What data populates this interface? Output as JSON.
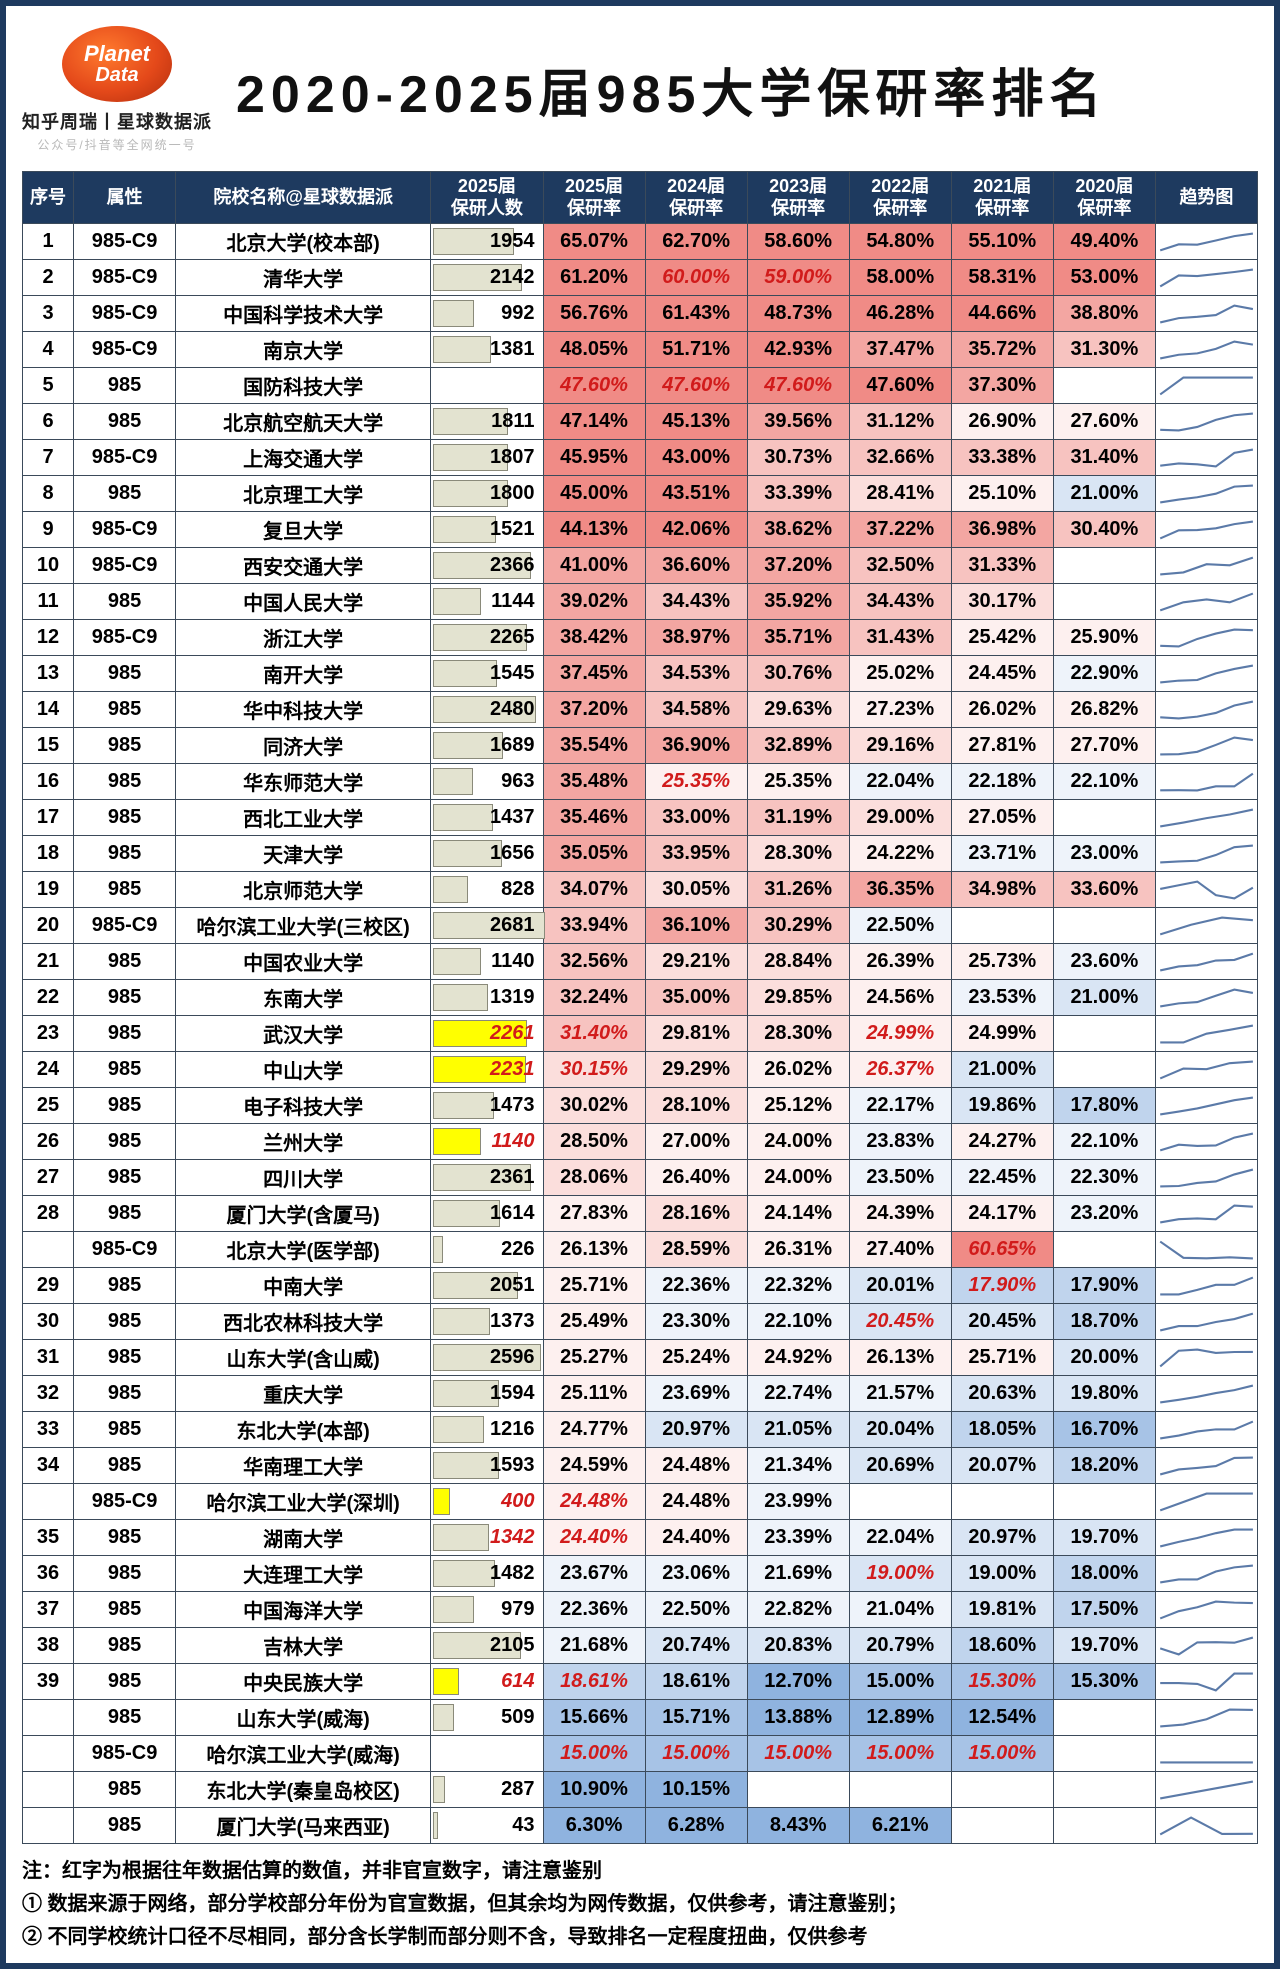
{
  "logo": {
    "line1": "Planet",
    "line2": "Data",
    "sub1": "知乎周瑞丨星球数据派",
    "sub2": "公众号/抖音等全网统一号"
  },
  "title": "2020-2025届985大学保研率排名",
  "columns": [
    "序号",
    "属性",
    "院校名称@星球数据派",
    "2025届\n保研人数",
    "2025届\n保研率",
    "2024届\n保研率",
    "2023届\n保研率",
    "2022届\n保研率",
    "2021届\n保研率",
    "2020届\n保研率",
    "趋势图"
  ],
  "max_count": 2681,
  "heat_palette": {
    "r5": "#f08b86",
    "r4": "#f3a6a2",
    "r3": "#f7c3c0",
    "r2": "#fbdedc",
    "r1": "#fdf0ef",
    "b1": "#eef3fa",
    "b2": "#d9e5f4",
    "b3": "#c0d4ed",
    "b4": "#a7c3e6",
    "b5": "#8fb3df",
    "w": "#ffffff"
  },
  "rows": [
    {
      "rank": "1",
      "attr": "985-C9",
      "name": "北京大学(校本部)",
      "count": "1954",
      "p": [
        "65.07%",
        "62.70%",
        "58.60%",
        "54.80%",
        "55.10%",
        "49.40%"
      ],
      "s": [
        "r5",
        "r5",
        "r5",
        "r5",
        "r5",
        "r5"
      ]
    },
    {
      "rank": "2",
      "attr": "985-C9",
      "name": "清华大学",
      "count": "2142",
      "p": [
        "61.20%",
        "60.00%",
        "59.00%",
        "58.00%",
        "58.31%",
        "53.00%"
      ],
      "s": [
        "r5",
        "r5",
        "r5",
        "r5",
        "r5",
        "r5"
      ],
      "red": [
        0,
        1,
        1,
        0,
        0,
        0
      ]
    },
    {
      "rank": "3",
      "attr": "985-C9",
      "name": "中国科学技术大学",
      "count": "992",
      "p": [
        "56.76%",
        "61.43%",
        "48.73%",
        "46.28%",
        "44.66%",
        "38.80%"
      ],
      "s": [
        "r5",
        "r5",
        "r5",
        "r5",
        "r5",
        "r4"
      ]
    },
    {
      "rank": "4",
      "attr": "985-C9",
      "name": "南京大学",
      "count": "1381",
      "p": [
        "48.05%",
        "51.71%",
        "42.93%",
        "37.47%",
        "35.72%",
        "31.30%"
      ],
      "s": [
        "r5",
        "r5",
        "r5",
        "r4",
        "r4",
        "r3"
      ]
    },
    {
      "rank": "5",
      "attr": "985",
      "name": "国防科技大学",
      "count": "",
      "p": [
        "47.60%",
        "47.60%",
        "47.60%",
        "47.60%",
        "37.30%",
        ""
      ],
      "s": [
        "r5",
        "r5",
        "r5",
        "r5",
        "r4",
        "w"
      ],
      "red": [
        1,
        1,
        1,
        0,
        0,
        0
      ]
    },
    {
      "rank": "6",
      "attr": "985",
      "name": "北京航空航天大学",
      "count": "1811",
      "p": [
        "47.14%",
        "45.13%",
        "39.56%",
        "31.12%",
        "26.90%",
        "27.60%"
      ],
      "s": [
        "r5",
        "r5",
        "r4",
        "r3",
        "r1",
        "r1"
      ]
    },
    {
      "rank": "7",
      "attr": "985-C9",
      "name": "上海交通大学",
      "count": "1807",
      "p": [
        "45.95%",
        "43.00%",
        "30.73%",
        "32.66%",
        "33.38%",
        "31.40%"
      ],
      "s": [
        "r5",
        "r5",
        "r3",
        "r3",
        "r3",
        "r3"
      ]
    },
    {
      "rank": "8",
      "attr": "985",
      "name": "北京理工大学",
      "count": "1800",
      "p": [
        "45.00%",
        "43.51%",
        "33.39%",
        "28.41%",
        "25.10%",
        "21.00%"
      ],
      "s": [
        "r5",
        "r5",
        "r3",
        "r2",
        "r1",
        "b2"
      ]
    },
    {
      "rank": "9",
      "attr": "985-C9",
      "name": "复旦大学",
      "count": "1521",
      "p": [
        "44.13%",
        "42.06%",
        "38.62%",
        "37.22%",
        "36.98%",
        "30.40%"
      ],
      "s": [
        "r5",
        "r5",
        "r4",
        "r4",
        "r4",
        "r3"
      ]
    },
    {
      "rank": "10",
      "attr": "985-C9",
      "name": "西安交通大学",
      "count": "2366",
      "p": [
        "41.00%",
        "36.60%",
        "37.20%",
        "32.50%",
        "31.33%",
        ""
      ],
      "s": [
        "r4",
        "r4",
        "r4",
        "r3",
        "r3",
        "w"
      ]
    },
    {
      "rank": "11",
      "attr": "985",
      "name": "中国人民大学",
      "count": "1144",
      "p": [
        "39.02%",
        "34.43%",
        "35.92%",
        "34.43%",
        "30.17%",
        ""
      ],
      "s": [
        "r4",
        "r3",
        "r4",
        "r3",
        "r2",
        "w"
      ]
    },
    {
      "rank": "12",
      "attr": "985-C9",
      "name": "浙江大学",
      "count": "2265",
      "p": [
        "38.42%",
        "38.97%",
        "35.71%",
        "31.43%",
        "25.42%",
        "25.90%"
      ],
      "s": [
        "r4",
        "r4",
        "r4",
        "r3",
        "r1",
        "r1"
      ]
    },
    {
      "rank": "13",
      "attr": "985",
      "name": "南开大学",
      "count": "1545",
      "p": [
        "37.45%",
        "34.53%",
        "30.76%",
        "25.02%",
        "24.45%",
        "22.90%"
      ],
      "s": [
        "r4",
        "r3",
        "r3",
        "r1",
        "r1",
        "b1"
      ]
    },
    {
      "rank": "14",
      "attr": "985",
      "name": "华中科技大学",
      "count": "2480",
      "p": [
        "37.20%",
        "34.58%",
        "29.63%",
        "27.23%",
        "26.02%",
        "26.82%"
      ],
      "s": [
        "r4",
        "r3",
        "r2",
        "r1",
        "r1",
        "r1"
      ]
    },
    {
      "rank": "15",
      "attr": "985",
      "name": "同济大学",
      "count": "1689",
      "p": [
        "35.54%",
        "36.90%",
        "32.89%",
        "29.16%",
        "27.81%",
        "27.70%"
      ],
      "s": [
        "r4",
        "r4",
        "r3",
        "r2",
        "r1",
        "r1"
      ]
    },
    {
      "rank": "16",
      "attr": "985",
      "name": "华东师范大学",
      "count": "963",
      "p": [
        "35.48%",
        "25.35%",
        "25.35%",
        "22.04%",
        "22.18%",
        "22.10%"
      ],
      "s": [
        "r4",
        "r1",
        "r1",
        "b1",
        "b1",
        "b1"
      ],
      "red": [
        0,
        1,
        0,
        0,
        0,
        0
      ]
    },
    {
      "rank": "17",
      "attr": "985",
      "name": "西北工业大学",
      "count": "1437",
      "p": [
        "35.46%",
        "33.00%",
        "31.19%",
        "29.00%",
        "27.05%",
        ""
      ],
      "s": [
        "r4",
        "r3",
        "r3",
        "r2",
        "r1",
        "w"
      ]
    },
    {
      "rank": "18",
      "attr": "985",
      "name": "天津大学",
      "count": "1656",
      "p": [
        "35.05%",
        "33.95%",
        "28.30%",
        "24.22%",
        "23.71%",
        "23.00%"
      ],
      "s": [
        "r4",
        "r3",
        "r2",
        "r1",
        "b1",
        "b1"
      ]
    },
    {
      "rank": "19",
      "attr": "985",
      "name": "北京师范大学",
      "count": "828",
      "p": [
        "34.07%",
        "30.05%",
        "31.26%",
        "36.35%",
        "34.98%",
        "33.60%"
      ],
      "s": [
        "r3",
        "r2",
        "r3",
        "r4",
        "r3",
        "r3"
      ]
    },
    {
      "rank": "20",
      "attr": "985-C9",
      "name": "哈尔滨工业大学(三校区)",
      "count": "2681",
      "p": [
        "33.94%",
        "36.10%",
        "30.29%",
        "22.50%",
        "",
        ""
      ],
      "s": [
        "r3",
        "r4",
        "r3",
        "b1",
        "w",
        "w"
      ]
    },
    {
      "rank": "21",
      "attr": "985",
      "name": "中国农业大学",
      "count": "1140",
      "p": [
        "32.56%",
        "29.21%",
        "28.84%",
        "26.39%",
        "25.73%",
        "23.60%"
      ],
      "s": [
        "r3",
        "r2",
        "r2",
        "r1",
        "r1",
        "b1"
      ]
    },
    {
      "rank": "22",
      "attr": "985",
      "name": "东南大学",
      "count": "1319",
      "p": [
        "32.24%",
        "35.00%",
        "29.85%",
        "24.56%",
        "23.53%",
        "21.00%"
      ],
      "s": [
        "r3",
        "r3",
        "r2",
        "r1",
        "b1",
        "b2"
      ]
    },
    {
      "rank": "23",
      "attr": "985",
      "name": "武汉大学",
      "count": "2261",
      "count_hl": "yellow",
      "count_red": true,
      "p": [
        "31.40%",
        "29.81%",
        "28.30%",
        "24.99%",
        "24.99%",
        ""
      ],
      "s": [
        "r3",
        "r2",
        "r2",
        "r1",
        "r1",
        "w"
      ],
      "red": [
        1,
        0,
        0,
        1,
        0,
        0
      ]
    },
    {
      "rank": "24",
      "attr": "985",
      "name": "中山大学",
      "count": "2231",
      "count_hl": "yellow",
      "count_red": true,
      "p": [
        "30.15%",
        "29.29%",
        "26.02%",
        "26.37%",
        "21.00%",
        ""
      ],
      "s": [
        "r2",
        "r2",
        "r1",
        "r1",
        "b2",
        "w"
      ],
      "red": [
        1,
        0,
        0,
        1,
        0,
        0
      ]
    },
    {
      "rank": "25",
      "attr": "985",
      "name": "电子科技大学",
      "count": "1473",
      "p": [
        "30.02%",
        "28.10%",
        "25.12%",
        "22.17%",
        "19.86%",
        "17.80%"
      ],
      "s": [
        "r2",
        "r2",
        "r1",
        "b1",
        "b2",
        "b3"
      ]
    },
    {
      "rank": "26",
      "attr": "985",
      "name": "兰州大学",
      "count": "1140",
      "count_hl": "yellow",
      "count_red": true,
      "p": [
        "28.50%",
        "27.00%",
        "24.00%",
        "23.83%",
        "24.27%",
        "22.10%"
      ],
      "s": [
        "r2",
        "r1",
        "r1",
        "b1",
        "r1",
        "b1"
      ]
    },
    {
      "rank": "27",
      "attr": "985",
      "name": "四川大学",
      "count": "2361",
      "p": [
        "28.06%",
        "26.40%",
        "24.00%",
        "23.50%",
        "22.45%",
        "22.30%"
      ],
      "s": [
        "r2",
        "r1",
        "r1",
        "b1",
        "b1",
        "b1"
      ]
    },
    {
      "rank": "28",
      "attr": "985",
      "name": "厦门大学(含厦马)",
      "count": "1614",
      "p": [
        "27.83%",
        "28.16%",
        "24.14%",
        "24.39%",
        "24.17%",
        "23.20%"
      ],
      "s": [
        "r1",
        "r2",
        "r1",
        "r1",
        "r1",
        "b1"
      ]
    },
    {
      "rank": "",
      "attr": "985-C9",
      "name": "北京大学(医学部)",
      "count": "226",
      "p": [
        "26.13%",
        "28.59%",
        "26.31%",
        "27.40%",
        "60.65%",
        ""
      ],
      "s": [
        "r1",
        "r2",
        "r1",
        "r1",
        "r5",
        "w"
      ],
      "red": [
        0,
        0,
        0,
        0,
        1,
        0
      ]
    },
    {
      "rank": "29",
      "attr": "985",
      "name": "中南大学",
      "count": "2051",
      "p": [
        "25.71%",
        "22.36%",
        "22.32%",
        "20.01%",
        "17.90%",
        "17.90%"
      ],
      "s": [
        "r1",
        "b1",
        "b1",
        "b2",
        "b3",
        "b3"
      ],
      "red": [
        0,
        0,
        0,
        0,
        1,
        0
      ]
    },
    {
      "rank": "30",
      "attr": "985",
      "name": "西北农林科技大学",
      "count": "1373",
      "p": [
        "25.49%",
        "23.30%",
        "22.10%",
        "20.45%",
        "20.45%",
        "18.70%"
      ],
      "s": [
        "r1",
        "b1",
        "b1",
        "b2",
        "b2",
        "b3"
      ],
      "red": [
        0,
        0,
        0,
        1,
        0,
        0
      ]
    },
    {
      "rank": "31",
      "attr": "985",
      "name": "山东大学(含山威)",
      "count": "2596",
      "p": [
        "25.27%",
        "25.24%",
        "24.92%",
        "26.13%",
        "25.71%",
        "20.00%"
      ],
      "s": [
        "r1",
        "r1",
        "r1",
        "r1",
        "r1",
        "b2"
      ]
    },
    {
      "rank": "32",
      "attr": "985",
      "name": "重庆大学",
      "count": "1594",
      "p": [
        "25.11%",
        "23.69%",
        "22.74%",
        "21.57%",
        "20.63%",
        "19.80%"
      ],
      "s": [
        "r1",
        "b1",
        "b1",
        "b1",
        "b2",
        "b2"
      ]
    },
    {
      "rank": "33",
      "attr": "985",
      "name": "东北大学(本部)",
      "count": "1216",
      "p": [
        "24.77%",
        "20.97%",
        "21.05%",
        "20.04%",
        "18.05%",
        "16.70%"
      ],
      "s": [
        "r1",
        "b2",
        "b2",
        "b2",
        "b3",
        "b4"
      ]
    },
    {
      "rank": "34",
      "attr": "985",
      "name": "华南理工大学",
      "count": "1593",
      "p": [
        "24.59%",
        "24.48%",
        "21.34%",
        "20.69%",
        "20.07%",
        "18.20%"
      ],
      "s": [
        "r1",
        "r1",
        "b1",
        "b2",
        "b2",
        "b3"
      ]
    },
    {
      "rank": "",
      "attr": "985-C9",
      "name": "哈尔滨工业大学(深圳)",
      "count": "400",
      "count_hl": "yellow",
      "count_red": true,
      "p": [
        "24.48%",
        "24.48%",
        "23.99%",
        "",
        "",
        ""
      ],
      "s": [
        "r1",
        "r1",
        "b1",
        "w",
        "w",
        "w"
      ],
      "red": [
        1,
        0,
        0,
        0,
        0,
        0
      ]
    },
    {
      "rank": "35",
      "attr": "985",
      "name": "湖南大学",
      "count": "1342",
      "count_red": true,
      "p": [
        "24.40%",
        "24.40%",
        "23.39%",
        "22.04%",
        "20.97%",
        "19.70%"
      ],
      "s": [
        "r1",
        "r1",
        "b1",
        "b1",
        "b2",
        "b2"
      ],
      "red": [
        1,
        0,
        0,
        0,
        0,
        0
      ]
    },
    {
      "rank": "36",
      "attr": "985",
      "name": "大连理工大学",
      "count": "1482",
      "p": [
        "23.67%",
        "23.06%",
        "21.69%",
        "19.00%",
        "19.00%",
        "18.00%"
      ],
      "s": [
        "b1",
        "b1",
        "b1",
        "b2",
        "b2",
        "b3"
      ],
      "red": [
        0,
        0,
        0,
        1,
        0,
        0
      ]
    },
    {
      "rank": "37",
      "attr": "985",
      "name": "中国海洋大学",
      "count": "979",
      "p": [
        "22.36%",
        "22.50%",
        "22.82%",
        "21.04%",
        "19.81%",
        "17.50%"
      ],
      "s": [
        "b1",
        "b1",
        "b1",
        "b1",
        "b2",
        "b3"
      ]
    },
    {
      "rank": "38",
      "attr": "985",
      "name": "吉林大学",
      "count": "2105",
      "p": [
        "21.68%",
        "20.74%",
        "20.83%",
        "20.79%",
        "18.60%",
        "19.70%"
      ],
      "s": [
        "b1",
        "b2",
        "b2",
        "b2",
        "b3",
        "b2"
      ]
    },
    {
      "rank": "39",
      "attr": "985",
      "name": "中央民族大学",
      "count": "614",
      "count_hl": "yellow",
      "count_red": true,
      "p": [
        "18.61%",
        "18.61%",
        "12.70%",
        "15.00%",
        "15.30%",
        "15.30%"
      ],
      "s": [
        "b3",
        "b3",
        "b5",
        "b4",
        "b4",
        "b4"
      ],
      "red": [
        1,
        0,
        0,
        0,
        1,
        0
      ]
    },
    {
      "rank": "",
      "attr": "985",
      "name": "山东大学(威海)",
      "count": "509",
      "p": [
        "15.66%",
        "15.71%",
        "13.88%",
        "12.89%",
        "12.54%",
        ""
      ],
      "s": [
        "b4",
        "b4",
        "b5",
        "b5",
        "b5",
        "w"
      ]
    },
    {
      "rank": "",
      "attr": "985-C9",
      "name": "哈尔滨工业大学(威海)",
      "count": "",
      "p": [
        "15.00%",
        "15.00%",
        "15.00%",
        "15.00%",
        "15.00%",
        ""
      ],
      "s": [
        "b4",
        "b4",
        "b4",
        "b4",
        "b4",
        "w"
      ],
      "red": [
        1,
        1,
        1,
        1,
        1,
        0
      ]
    },
    {
      "rank": "",
      "attr": "985",
      "name": "东北大学(秦皇岛校区)",
      "count": "287",
      "p": [
        "10.90%",
        "10.15%",
        "",
        "",
        "",
        ""
      ],
      "s": [
        "b5",
        "b5",
        "w",
        "w",
        "w",
        "w"
      ]
    },
    {
      "rank": "",
      "attr": "985",
      "name": "厦门大学(马来西亚)",
      "count": "43",
      "p": [
        "6.30%",
        "6.28%",
        "8.43%",
        "6.21%",
        "",
        ""
      ],
      "s": [
        "b5",
        "b5",
        "b5",
        "b5",
        "w",
        "w"
      ]
    }
  ],
  "notes": [
    "注：红字为根据往年数据估算的数值，并非官宣数字，请注意鉴别",
    "① 数据来源于网络，部分学校部分年份为官宣数据，但其余均为网传数据，仅供参考，请注意鉴别；",
    "② 不同学校统计口径不尽相同，部分含长学制而部分则不含，导致排名一定程度扭曲，仅供参考"
  ]
}
